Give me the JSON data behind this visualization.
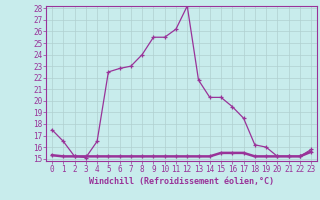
{
  "xlabel": "Windchill (Refroidissement éolien,°C)",
  "background_color": "#c8ecec",
  "grid_color": "#b0d0d0",
  "line_color": "#993399",
  "hours": [
    0,
    1,
    2,
    3,
    4,
    5,
    6,
    7,
    8,
    9,
    10,
    11,
    12,
    13,
    14,
    15,
    16,
    17,
    18,
    19,
    20,
    21,
    22,
    23
  ],
  "temp_line": [
    17.5,
    16.5,
    15.2,
    15.1,
    16.5,
    22.5,
    22.8,
    23.0,
    24.0,
    25.5,
    25.5,
    26.2,
    28.2,
    21.8,
    20.3,
    20.3,
    19.5,
    18.5,
    16.2,
    16.0,
    15.2,
    15.2,
    15.2,
    15.8
  ],
  "windchill_line": [
    15.3,
    15.2,
    15.2,
    15.2,
    15.2,
    15.2,
    15.2,
    15.2,
    15.2,
    15.2,
    15.2,
    15.2,
    15.2,
    15.2,
    15.2,
    15.5,
    15.5,
    15.5,
    15.2,
    15.2,
    15.2,
    15.2,
    15.2,
    15.6
  ],
  "ylim_min": 15,
  "ylim_max": 28,
  "xlim_min": 0,
  "xlim_max": 23,
  "yticks": [
    15,
    16,
    17,
    18,
    19,
    20,
    21,
    22,
    23,
    24,
    25,
    26,
    27,
    28
  ],
  "xticks": [
    0,
    1,
    2,
    3,
    4,
    5,
    6,
    7,
    8,
    9,
    10,
    11,
    12,
    13,
    14,
    15,
    16,
    17,
    18,
    19,
    20,
    21,
    22,
    23
  ],
  "tick_fontsize": 5.5,
  "xlabel_fontsize": 6.0
}
